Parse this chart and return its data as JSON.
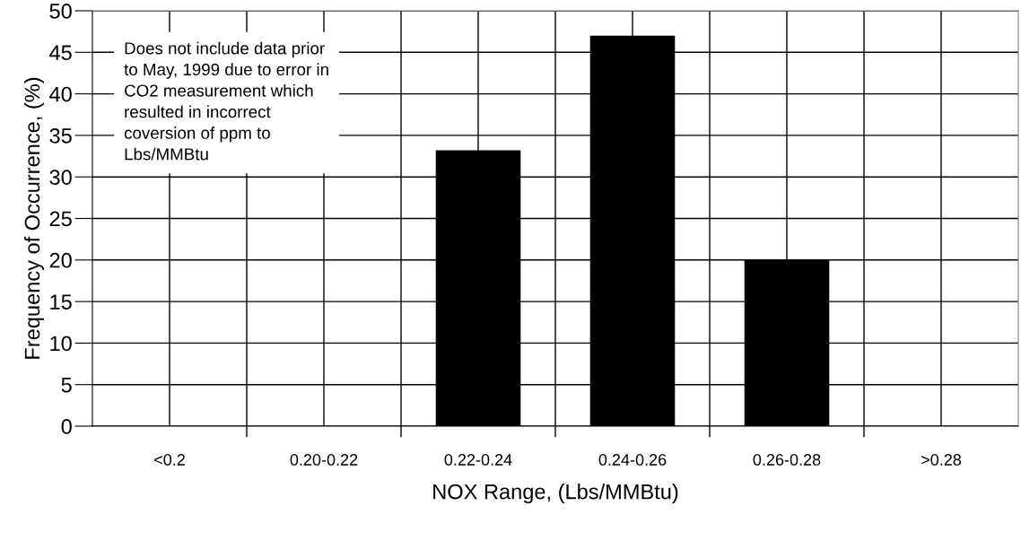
{
  "chart_data": {
    "type": "bar",
    "xlabel": "NOX Range, (Lbs/MMBtu)",
    "ylabel": "Frequency of Occurrence, (%)",
    "categories": [
      "<0.2",
      "0.20-0.22",
      "0.22-0.24",
      "0.24-0.26",
      "0.26-0.28",
      ">0.28"
    ],
    "values": [
      0,
      0,
      33.2,
      47.0,
      20.0,
      0
    ],
    "color": "#000000",
    "ylim": [
      0,
      50
    ],
    "yticks": [
      0,
      5,
      10,
      15,
      20,
      25,
      30,
      35,
      40,
      45,
      50
    ],
    "grid": true,
    "annotations": [
      "Does not include data prior\nto May, 1999 due to error in\nCO2 measurement which\nresulted in incorrect\ncoversion of ppm to\nLbs/MMBtu"
    ]
  }
}
